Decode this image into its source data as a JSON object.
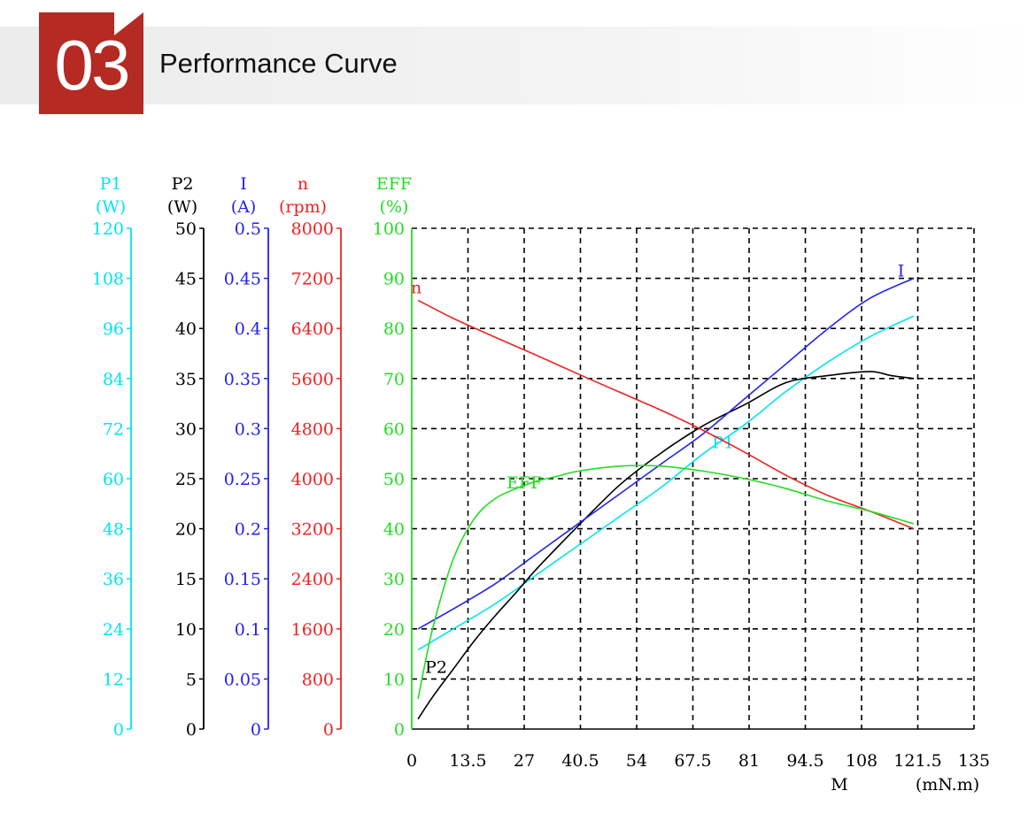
{
  "header": {
    "number": "03",
    "title": "Performance Curve"
  },
  "colors": {
    "p1": "#00e5ee",
    "p2": "#000000",
    "i": "#2222ee",
    "n": "#ee2222",
    "eff": "#22dd22",
    "badge": "#b52a22"
  },
  "chart_data": {
    "type": "line",
    "grid": true,
    "x_axis": {
      "ticks": [
        "0",
        "13.5",
        "27",
        "40.5",
        "54",
        "67.5",
        "81",
        "94.5",
        "108",
        "121.5",
        "135"
      ],
      "label": "M",
      "unit": "(mN.m)",
      "range": [
        0,
        135
      ]
    },
    "y_axes": [
      {
        "id": "p1",
        "name": "P1",
        "unit": "(W)",
        "range": [
          0,
          120
        ],
        "ticks": [
          "0",
          "12",
          "24",
          "36",
          "48",
          "60",
          "72",
          "84",
          "96",
          "108",
          "120"
        ]
      },
      {
        "id": "p2",
        "name": "P2",
        "unit": "(W)",
        "range": [
          0,
          50
        ],
        "ticks": [
          "0",
          "5",
          "10",
          "15",
          "20",
          "25",
          "30",
          "35",
          "40",
          "45",
          "50"
        ]
      },
      {
        "id": "i",
        "name": "I",
        "unit": "(A)",
        "range": [
          0,
          0.5
        ],
        "ticks": [
          "0",
          "0.05",
          "0.1",
          "0.15",
          "0.2",
          "0.25",
          "0.3",
          "0.35",
          "0.4",
          "0.45",
          "0.5"
        ]
      },
      {
        "id": "n",
        "name": "n",
        "unit": "(rpm)",
        "range": [
          0,
          8000
        ],
        "ticks": [
          "0",
          "800",
          "1600",
          "2400",
          "3200",
          "4000",
          "4800",
          "5600",
          "6400",
          "7200",
          "8000"
        ]
      },
      {
        "id": "eff",
        "name": "EFF",
        "unit": "(%)",
        "range": [
          0,
          100
        ],
        "ticks": [
          "0",
          "10",
          "20",
          "30",
          "40",
          "50",
          "60",
          "70",
          "80",
          "90",
          "100"
        ]
      }
    ],
    "series": [
      {
        "name": "P1",
        "axis": "p1",
        "x": [
          1.5,
          10,
          20,
          30,
          40,
          50,
          60,
          70,
          80,
          90,
          100,
          110,
          120.5
        ],
        "y": [
          19,
          24,
          30,
          37,
          44,
          51,
          58,
          66,
          73,
          81,
          88,
          94,
          99
        ]
      },
      {
        "name": "P2",
        "axis": "p2",
        "x": [
          1.5,
          5,
          10,
          15,
          20,
          25,
          30,
          40,
          50,
          60,
          70,
          80,
          90,
          100,
          110,
          115,
          120.5
        ],
        "y": [
          1,
          3.2,
          6,
          8.8,
          11.3,
          13.6,
          16,
          20.3,
          24.4,
          27.6,
          30.3,
          32.4,
          34.6,
          35.3,
          35.7,
          35.3,
          35
        ]
      },
      {
        "name": "I",
        "axis": "i",
        "x": [
          1.5,
          10,
          20,
          30,
          40,
          50,
          60,
          70,
          80,
          90,
          100,
          110,
          120.5
        ],
        "y": [
          0.1,
          0.12,
          0.145,
          0.175,
          0.205,
          0.235,
          0.265,
          0.295,
          0.33,
          0.365,
          0.4,
          0.43,
          0.45
        ]
      },
      {
        "name": "n",
        "axis": "n",
        "x": [
          1.5,
          10,
          20,
          30,
          40,
          50,
          60,
          70,
          80,
          90,
          100,
          110,
          120.5
        ],
        "y": [
          6850,
          6560,
          6260,
          5970,
          5670,
          5380,
          5090,
          4770,
          4420,
          4050,
          3730,
          3480,
          3200
        ]
      },
      {
        "name": "EFF",
        "axis": "eff",
        "x": [
          1.5,
          5,
          10,
          15,
          20,
          25,
          30,
          35,
          40,
          50,
          60,
          70,
          80,
          90,
          100,
          110,
          120.5
        ],
        "y": [
          6,
          20,
          34,
          42,
          46,
          48,
          49.5,
          50.5,
          51.5,
          52.5,
          52.5,
          51.5,
          50,
          48,
          45.5,
          43.5,
          41
        ]
      }
    ]
  }
}
